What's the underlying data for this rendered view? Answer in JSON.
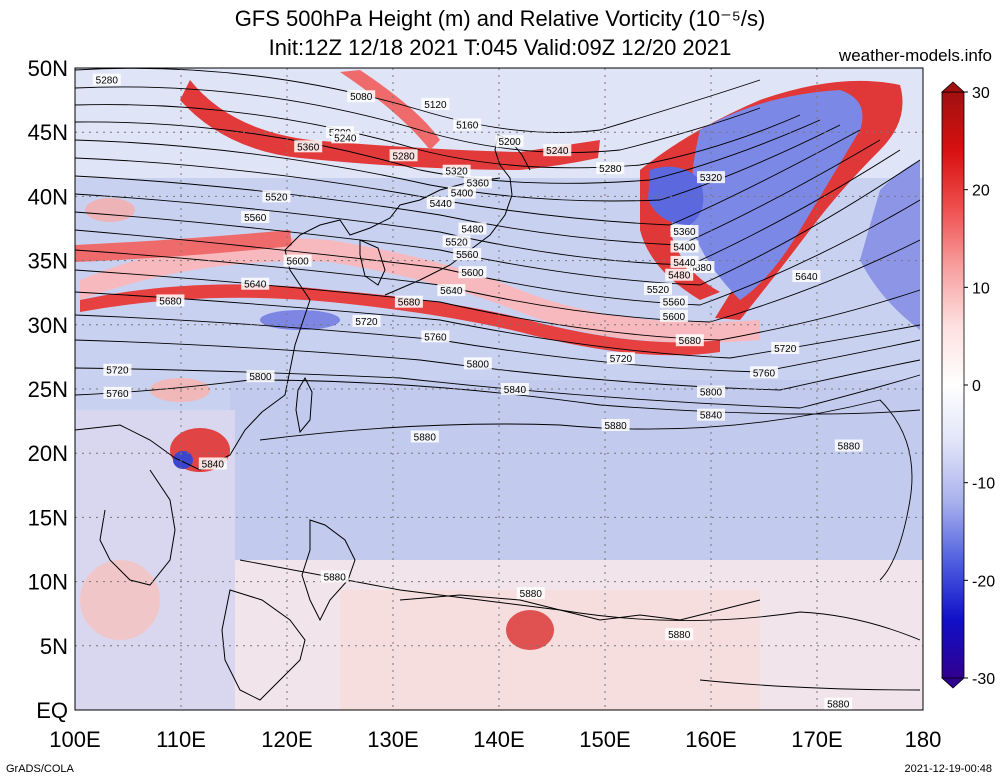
{
  "header": {
    "title_line1": "GFS 500hPa Height (m) and Relative Vorticity (10⁻⁵/s)",
    "title_line2": "Init:12Z 12/18 2021 T:045 Valid:09Z 12/20 2021",
    "site": "weather-models.info"
  },
  "footer": {
    "left": "GrADS/COLA",
    "right": "2021-12-19-00:48"
  },
  "map": {
    "lon_labels": [
      "100E",
      "110E",
      "120E",
      "130E",
      "140E",
      "150E",
      "160E",
      "170E",
      "180"
    ],
    "lat_labels": [
      "50N",
      "45N",
      "40N",
      "35N",
      "30N",
      "25N",
      "20N",
      "15N",
      "10N",
      "5N",
      "EQ"
    ],
    "colorbar_labels": [
      "30",
      "20",
      "10",
      "0",
      "-10",
      "-20",
      "-30"
    ],
    "colorbar_colors": [
      "#a01010",
      "#d81010",
      "#f05050",
      "#f8a0a0",
      "#fde0e0",
      "#ffffff",
      "#e0e4f8",
      "#a8b0ec",
      "#5060e0",
      "#1010c8",
      "#300090"
    ],
    "contours": [
      {
        "label": "5080",
        "lon": 127,
        "lat": 47.8
      },
      {
        "label": "5120",
        "lon": 134,
        "lat": 47.2
      },
      {
        "label": "5160",
        "lon": 137,
        "lat": 45.6
      },
      {
        "label": "5200",
        "lon": 125,
        "lat": 45.0
      },
      {
        "label": "5240",
        "lon": 125.5,
        "lat": 44.6
      },
      {
        "label": "5200",
        "lon": 141,
        "lat": 44.3
      },
      {
        "label": "5240",
        "lon": 145.5,
        "lat": 43.6
      },
      {
        "label": "5280",
        "lon": 131,
        "lat": 43.2
      },
      {
        "label": "5280",
        "lon": 150.5,
        "lat": 42.2
      },
      {
        "label": "5320",
        "lon": 160,
        "lat": 41.5
      },
      {
        "label": "5320",
        "lon": 136,
        "lat": 42.0
      },
      {
        "label": "5360",
        "lon": 138,
        "lat": 41.1
      },
      {
        "label": "5360",
        "lon": 122,
        "lat": 43.9
      },
      {
        "label": "5400",
        "lon": 136.5,
        "lat": 40.3
      },
      {
        "label": "5440",
        "lon": 134.5,
        "lat": 39.5
      },
      {
        "label": "5480",
        "lon": 137.5,
        "lat": 37.5
      },
      {
        "label": "5520",
        "lon": 119,
        "lat": 40.0
      },
      {
        "label": "5520",
        "lon": 136,
        "lat": 36.5
      },
      {
        "label": "5560",
        "lon": 117,
        "lat": 38.4
      },
      {
        "label": "5560",
        "lon": 137,
        "lat": 35.5
      },
      {
        "label": "5600",
        "lon": 121,
        "lat": 35.0
      },
      {
        "label": "5600",
        "lon": 137.5,
        "lat": 34.1
      },
      {
        "label": "5640",
        "lon": 117,
        "lat": 33.2
      },
      {
        "label": "5640",
        "lon": 135.5,
        "lat": 32.7
      },
      {
        "label": "5640",
        "lon": 169,
        "lat": 33.8
      },
      {
        "label": "5680",
        "lon": 109,
        "lat": 31.9
      },
      {
        "label": "5680",
        "lon": 131.5,
        "lat": 31.8
      },
      {
        "label": "5720",
        "lon": 127.5,
        "lat": 30.3
      },
      {
        "label": "5720",
        "lon": 104,
        "lat": 26.5
      },
      {
        "label": "5720",
        "lon": 151.5,
        "lat": 27.4
      },
      {
        "label": "5720",
        "lon": 167,
        "lat": 28.2
      },
      {
        "label": "5760",
        "lon": 134,
        "lat": 29.1
      },
      {
        "label": "5760",
        "lon": 104,
        "lat": 24.7
      },
      {
        "label": "5760",
        "lon": 165,
        "lat": 26.3
      },
      {
        "label": "5800",
        "lon": 117.5,
        "lat": 26.0
      },
      {
        "label": "5800",
        "lon": 138,
        "lat": 27.0
      },
      {
        "label": "5800",
        "lon": 160,
        "lat": 24.8
      },
      {
        "label": "5840",
        "lon": 141.5,
        "lat": 25.0
      },
      {
        "label": "5840",
        "lon": 113,
        "lat": 19.2
      },
      {
        "label": "5840",
        "lon": 160,
        "lat": 23.0
      },
      {
        "label": "5880",
        "lon": 159,
        "lat": 34.5
      },
      {
        "label": "5880",
        "lon": 133,
        "lat": 21.3
      },
      {
        "label": "5880",
        "lon": 151,
        "lat": 22.2
      },
      {
        "label": "5880",
        "lon": 173,
        "lat": 20.6
      },
      {
        "label": "5880",
        "lon": 124.5,
        "lat": 10.4
      },
      {
        "label": "5880",
        "lon": 143,
        "lat": 9.1
      },
      {
        "label": "5880",
        "lon": 157,
        "lat": 5.9
      },
      {
        "label": "5880",
        "lon": 172,
        "lat": 0.5
      },
      {
        "label": "5600",
        "lon": 156.5,
        "lat": 30.7
      },
      {
        "label": "5560",
        "lon": 156.5,
        "lat": 31.8
      },
      {
        "label": "5520",
        "lon": 155,
        "lat": 32.8
      },
      {
        "label": "5480",
        "lon": 157,
        "lat": 33.9
      },
      {
        "label": "5440",
        "lon": 157.5,
        "lat": 34.9
      },
      {
        "label": "5400",
        "lon": 157.5,
        "lat": 36.1
      },
      {
        "label": "5360",
        "lon": 157.5,
        "lat": 37.3
      },
      {
        "label": "5680",
        "lon": 158,
        "lat": 28.8
      },
      {
        "label": "5280",
        "lon": 103,
        "lat": 49.1
      }
    ]
  }
}
